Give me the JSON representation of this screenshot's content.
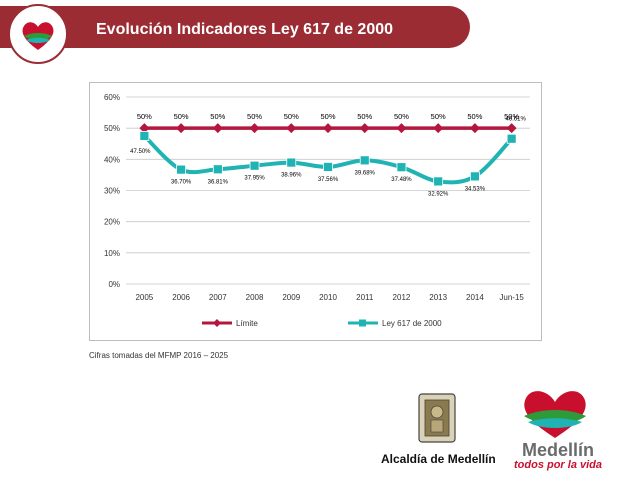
{
  "header": {
    "title": "Evolución Indicadores Ley 617 de 2000"
  },
  "footnote": "Cifras tomadas del MFMP 2016 – 2025",
  "footer": {
    "alcaldia_text": "Alcaldía de Medellín",
    "medellin_name": "Medellín",
    "medellin_tagline": "todos por la vida"
  },
  "colors": {
    "banner": "#9b2c33",
    "limite": "#b5173c",
    "ley": "#1fb3b3"
  },
  "chart_data": {
    "type": "line",
    "categories": [
      "2005",
      "2006",
      "2007",
      "2008",
      "2009",
      "2010",
      "2011",
      "2012",
      "2013",
      "2014",
      "Jun-15"
    ],
    "ylim": [
      0,
      60
    ],
    "yticks": [
      "0%",
      "10%",
      "20%",
      "30%",
      "40%",
      "50%",
      "60%"
    ],
    "grid": true,
    "legend_position": "bottom",
    "series": [
      {
        "name": "Límite",
        "values": [
          50,
          50,
          50,
          50,
          50,
          50,
          50,
          50,
          50,
          50,
          50
        ],
        "labels": [
          "50%",
          "50%",
          "50%",
          "50%",
          "50%",
          "50%",
          "50%",
          "50%",
          "50%",
          "50%",
          "50%"
        ]
      },
      {
        "name": "Ley 617 de 2000",
        "values": [
          47.5,
          36.7,
          36.81,
          37.95,
          38.96,
          37.56,
          39.68,
          37.48,
          32.92,
          34.53,
          46.61
        ],
        "labels": [
          "47.50%",
          "36.70%",
          "36.81%",
          "37.95%",
          "38.96%",
          "37.56%",
          "39.68%",
          "37.48%",
          "32.92%",
          "34.53%",
          "46.61%"
        ]
      }
    ]
  }
}
